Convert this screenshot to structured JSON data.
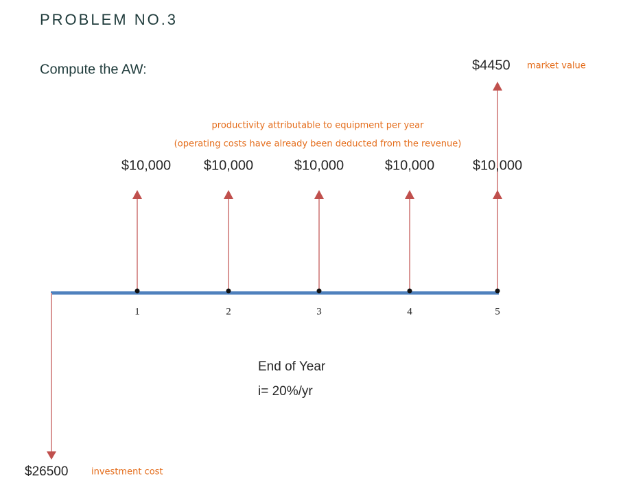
{
  "header": {
    "title": "PROBLEM NO.3",
    "prompt": "Compute the AW:"
  },
  "annotations": {
    "market_value": "$4450",
    "market_value_note": "market value",
    "productivity_line1": "productivity attributable to equipment per year",
    "productivity_line2": "(operating costs have already been deducted from the revenue)",
    "investment": "$26500",
    "investment_note": "investment cost",
    "time_label": "End of Year",
    "interest": "i= 20%/yr"
  },
  "cash_flows": [
    {
      "period": "1",
      "amount": "$10,000"
    },
    {
      "period": "2",
      "amount": "$10,000"
    },
    {
      "period": "3",
      "amount": "$10,000"
    },
    {
      "period": "4",
      "amount": "$10,000"
    },
    {
      "period": "5",
      "amount": "$10,000"
    }
  ]
}
